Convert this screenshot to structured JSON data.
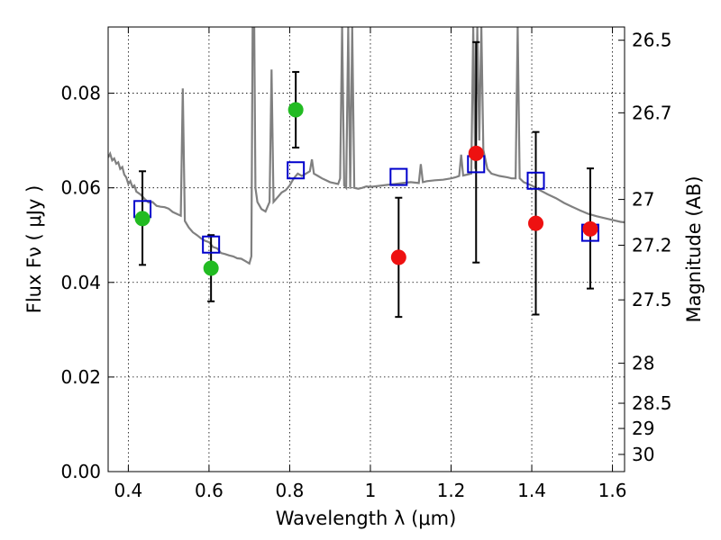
{
  "chart_data": {
    "type": "scatter",
    "xlabel": "Wavelength  λ (μm)",
    "ylabel": "Flux  Fν  ( μJy )",
    "y2label": "Magnitude (AB)",
    "xlim": [
      0.35,
      1.63
    ],
    "ylim": [
      0.0,
      0.094
    ],
    "grid": true,
    "x_ticks": [
      {
        "value": 0.4,
        "label": "0.4"
      },
      {
        "value": 0.6,
        "label": "0.6"
      },
      {
        "value": 0.8,
        "label": "0.8"
      },
      {
        "value": 1.0,
        "label": "1"
      },
      {
        "value": 1.2,
        "label": "1.2"
      },
      {
        "value": 1.4,
        "label": "1.4"
      },
      {
        "value": 1.6,
        "label": "1.6"
      }
    ],
    "y_ticks": [
      {
        "value": 0.0,
        "label": "0.00"
      },
      {
        "value": 0.02,
        "label": "0.02"
      },
      {
        "value": 0.04,
        "label": "0.04"
      },
      {
        "value": 0.06,
        "label": "0.06"
      },
      {
        "value": 0.08,
        "label": "0.08"
      }
    ],
    "mag_ticks": [
      {
        "value": 26.5,
        "label": "26.5"
      },
      {
        "value": 26.7,
        "label": "26.7"
      },
      {
        "value": 27,
        "label": "27"
      },
      {
        "value": 27.2,
        "label": "27.2"
      },
      {
        "value": 27.5,
        "label": "27.5"
      },
      {
        "value": 28,
        "label": "28"
      },
      {
        "value": 28.5,
        "label": "28.5"
      },
      {
        "value": 29,
        "label": "29"
      },
      {
        "value": 30,
        "label": "30"
      }
    ],
    "colors": {
      "spectrum": "#808080",
      "model_box": "#0000cc",
      "green_points": "#22bb22",
      "red_points": "#ee1111",
      "error_bar": "#000000"
    },
    "spectrum": [
      [
        0.35,
        0.0664
      ],
      [
        0.355,
        0.0672
      ],
      [
        0.36,
        0.0658
      ],
      [
        0.365,
        0.0662
      ],
      [
        0.37,
        0.0651
      ],
      [
        0.375,
        0.0654
      ],
      [
        0.38,
        0.064
      ],
      [
        0.385,
        0.0644
      ],
      [
        0.39,
        0.0628
      ],
      [
        0.395,
        0.0622
      ],
      [
        0.4,
        0.0608
      ],
      [
        0.405,
        0.0614
      ],
      [
        0.41,
        0.0602
      ],
      [
        0.415,
        0.0605
      ],
      [
        0.42,
        0.0592
      ],
      [
        0.43,
        0.0586
      ],
      [
        0.44,
        0.0577
      ],
      [
        0.45,
        0.0569
      ],
      [
        0.46,
        0.057
      ],
      [
        0.47,
        0.0562
      ],
      [
        0.48,
        0.056
      ],
      [
        0.49,
        0.0559
      ],
      [
        0.5,
        0.0556
      ],
      [
        0.51,
        0.0549
      ],
      [
        0.52,
        0.0545
      ],
      [
        0.53,
        0.0541
      ],
      [
        0.535,
        0.081
      ],
      [
        0.54,
        0.053
      ],
      [
        0.55,
        0.0516
      ],
      [
        0.56,
        0.0506
      ],
      [
        0.57,
        0.05
      ],
      [
        0.58,
        0.0493
      ],
      [
        0.59,
        0.0488
      ],
      [
        0.6,
        0.0485
      ],
      [
        0.61,
        0.0475
      ],
      [
        0.62,
        0.0472
      ],
      [
        0.63,
        0.0462
      ],
      [
        0.64,
        0.046
      ],
      [
        0.65,
        0.0457
      ],
      [
        0.66,
        0.0455
      ],
      [
        0.67,
        0.0451
      ],
      [
        0.68,
        0.045
      ],
      [
        0.69,
        0.0445
      ],
      [
        0.7,
        0.044
      ],
      [
        0.705,
        0.0455
      ],
      [
        0.708,
        0.094
      ],
      [
        0.712,
        0.094
      ],
      [
        0.715,
        0.06
      ],
      [
        0.72,
        0.057
      ],
      [
        0.73,
        0.0555
      ],
      [
        0.74,
        0.055
      ],
      [
        0.75,
        0.057
      ],
      [
        0.755,
        0.085
      ],
      [
        0.76,
        0.057
      ],
      [
        0.77,
        0.058
      ],
      [
        0.78,
        0.059
      ],
      [
        0.79,
        0.0595
      ],
      [
        0.8,
        0.0605
      ],
      [
        0.81,
        0.062
      ],
      [
        0.82,
        0.063
      ],
      [
        0.83,
        0.0625
      ],
      [
        0.84,
        0.063
      ],
      [
        0.85,
        0.0635
      ],
      [
        0.855,
        0.066
      ],
      [
        0.86,
        0.063
      ],
      [
        0.87,
        0.0625
      ],
      [
        0.88,
        0.062
      ],
      [
        0.89,
        0.0616
      ],
      [
        0.9,
        0.0612
      ],
      [
        0.91,
        0.061
      ],
      [
        0.92,
        0.0608
      ],
      [
        0.925,
        0.062
      ],
      [
        0.93,
        0.094
      ],
      [
        0.935,
        0.0605
      ],
      [
        0.94,
        0.06
      ],
      [
        0.945,
        0.094
      ],
      [
        0.95,
        0.0598
      ],
      [
        0.955,
        0.094
      ],
      [
        0.96,
        0.06
      ],
      [
        0.97,
        0.0598
      ],
      [
        0.98,
        0.06
      ],
      [
        0.99,
        0.0603
      ],
      [
        1.0,
        0.0602
      ],
      [
        1.02,
        0.0604
      ],
      [
        1.04,
        0.0606
      ],
      [
        1.06,
        0.0608
      ],
      [
        1.08,
        0.061
      ],
      [
        1.1,
        0.0612
      ],
      [
        1.12,
        0.061
      ],
      [
        1.125,
        0.065
      ],
      [
        1.13,
        0.0612
      ],
      [
        1.14,
        0.0614
      ],
      [
        1.16,
        0.0616
      ],
      [
        1.18,
        0.0617
      ],
      [
        1.2,
        0.062
      ],
      [
        1.21,
        0.0622
      ],
      [
        1.22,
        0.0625
      ],
      [
        1.225,
        0.067
      ],
      [
        1.23,
        0.0626
      ],
      [
        1.24,
        0.0628
      ],
      [
        1.25,
        0.063
      ],
      [
        1.255,
        0.094
      ],
      [
        1.26,
        0.064
      ],
      [
        1.265,
        0.094
      ],
      [
        1.27,
        0.07
      ],
      [
        1.275,
        0.094
      ],
      [
        1.28,
        0.068
      ],
      [
        1.29,
        0.064
      ],
      [
        1.3,
        0.063
      ],
      [
        1.32,
        0.0625
      ],
      [
        1.34,
        0.0622
      ],
      [
        1.35,
        0.062
      ],
      [
        1.36,
        0.062
      ],
      [
        1.365,
        0.094
      ],
      [
        1.37,
        0.062
      ],
      [
        1.38,
        0.0612
      ],
      [
        1.4,
        0.0605
      ],
      [
        1.42,
        0.0595
      ],
      [
        1.44,
        0.0586
      ],
      [
        1.46,
        0.0578
      ],
      [
        1.48,
        0.0568
      ],
      [
        1.5,
        0.056
      ],
      [
        1.52,
        0.0552
      ],
      [
        1.54,
        0.0545
      ],
      [
        1.56,
        0.054
      ],
      [
        1.58,
        0.0536
      ],
      [
        1.6,
        0.0532
      ],
      [
        1.62,
        0.0528
      ],
      [
        1.63,
        0.0527
      ]
    ],
    "model_boxes": [
      {
        "x": 0.435,
        "y": 0.0555
      },
      {
        "x": 0.605,
        "y": 0.048
      },
      {
        "x": 0.815,
        "y": 0.0637
      },
      {
        "x": 1.07,
        "y": 0.0623
      },
      {
        "x": 1.262,
        "y": 0.065
      },
      {
        "x": 1.41,
        "y": 0.0615
      },
      {
        "x": 1.545,
        "y": 0.0505
      }
    ],
    "measurements": [
      {
        "x": 0.435,
        "y": 0.0535,
        "ylo": 0.0437,
        "yhi": 0.0635,
        "group": "green"
      },
      {
        "x": 0.605,
        "y": 0.043,
        "ylo": 0.036,
        "yhi": 0.05,
        "group": "green"
      },
      {
        "x": 0.815,
        "y": 0.0765,
        "ylo": 0.0685,
        "yhi": 0.0845,
        "group": "green"
      },
      {
        "x": 1.07,
        "y": 0.0453,
        "ylo": 0.0327,
        "yhi": 0.0579,
        "group": "red"
      },
      {
        "x": 1.262,
        "y": 0.0673,
        "ylo": 0.0442,
        "yhi": 0.0908,
        "group": "red"
      },
      {
        "x": 1.41,
        "y": 0.0525,
        "ylo": 0.0332,
        "yhi": 0.0718,
        "group": "red"
      },
      {
        "x": 1.545,
        "y": 0.0513,
        "ylo": 0.0387,
        "yhi": 0.0641,
        "group": "red"
      }
    ]
  }
}
